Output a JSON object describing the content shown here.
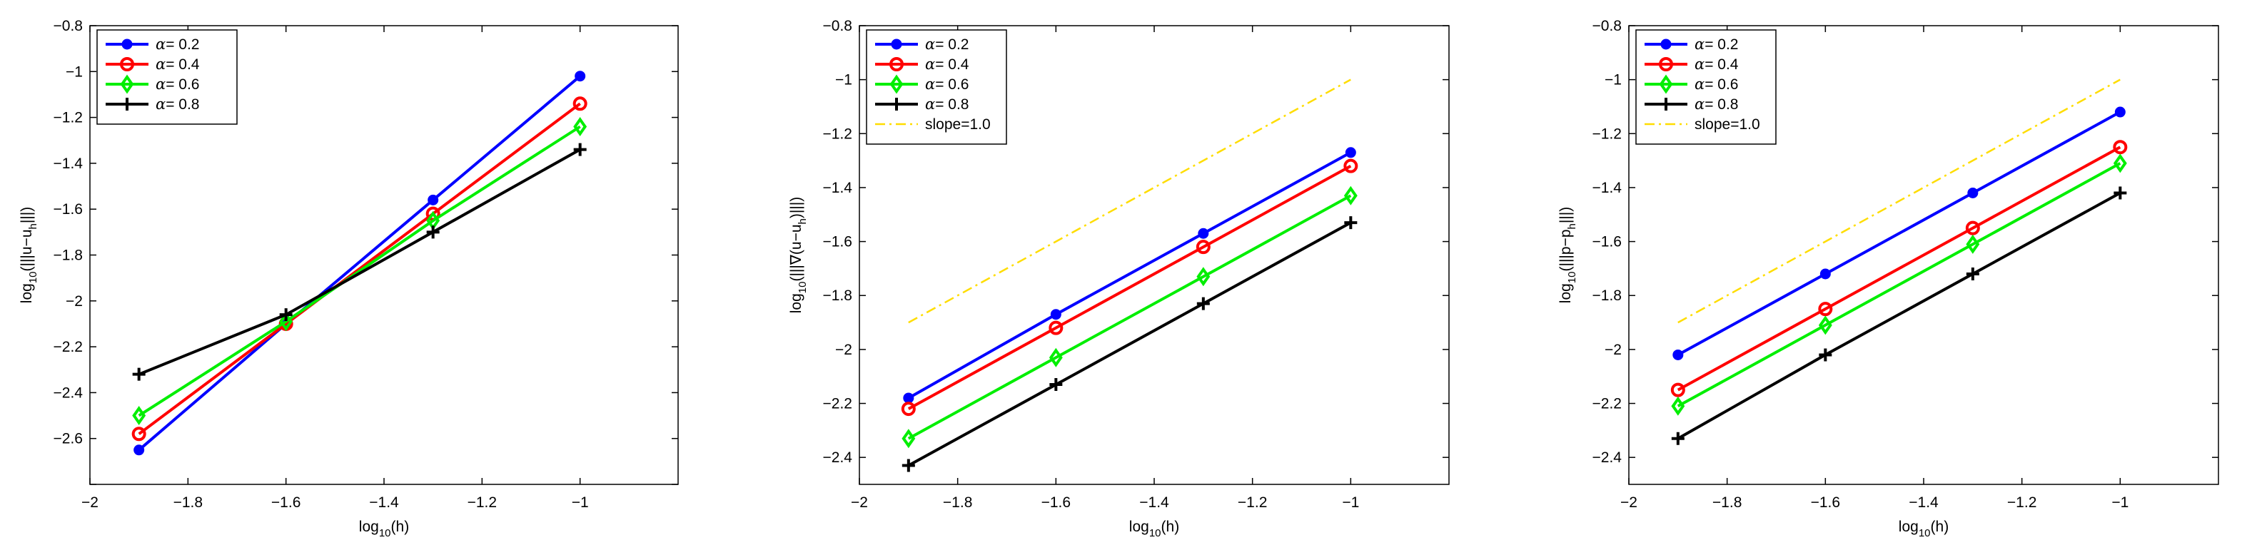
{
  "chart_data": [
    {
      "type": "line",
      "x": [
        -1.9,
        -1.6,
        -1.3,
        -1.0
      ],
      "xlabel": "log10(h)",
      "xlabel_base": "log",
      "xlabel_sub": "10",
      "xlabel_rest": "(h)",
      "ylabel": "log10(|||u−uh|||)",
      "ylabel_parts": {
        "base": "log",
        "sub": "10",
        "mid": "(|||u−u",
        "sub2": "h",
        "end": "|||)"
      },
      "xlim": [
        -2,
        -0.8
      ],
      "ylim": [
        -2.8,
        -0.8
      ],
      "xticks": [
        -2,
        -1.8,
        -1.6,
        -1.4,
        -1.2,
        -1
      ],
      "xtick_labels": [
        "−2",
        "−1.8",
        "−1.6",
        "−1.4",
        "−1.2",
        "−1"
      ],
      "yticks": [
        -2.8,
        -2.6,
        -2.4,
        -2.2,
        -2,
        -1.8,
        -1.6,
        -1.4,
        -1.2,
        -1,
        -0.8
      ],
      "ytick_labels": [
        "",
        "−2.6",
        "−2.4",
        "−2.2",
        "−2",
        "−1.8",
        "−1.6",
        "−1.4",
        "−1.2",
        "−1",
        "−0.8"
      ],
      "legend_position": "top-left",
      "series": [
        {
          "name": "α= 0.2",
          "symbol": "α",
          "label_rest": "= 0.2",
          "color": "#0000ff",
          "marker": "dot",
          "values": [
            -2.65,
            -2.1,
            -1.56,
            -1.02
          ]
        },
        {
          "name": "α= 0.4",
          "symbol": "α",
          "label_rest": "= 0.4",
          "color": "#ff0000",
          "marker": "circle",
          "values": [
            -2.58,
            -2.1,
            -1.62,
            -1.14
          ]
        },
        {
          "name": "α= 0.6",
          "symbol": "α",
          "label_rest": "= 0.6",
          "color": "#00ee00",
          "marker": "diamond",
          "values": [
            -2.5,
            -2.09,
            -1.65,
            -1.24
          ]
        },
        {
          "name": "α= 0.8",
          "symbol": "α",
          "label_rest": "= 0.8",
          "color": "#000000",
          "marker": "plus",
          "values": [
            -2.32,
            -2.06,
            -1.7,
            -1.34
          ]
        }
      ]
    },
    {
      "type": "line",
      "x": [
        -1.9,
        -1.6,
        -1.3,
        -1.0
      ],
      "xlabel": "log10(h)",
      "xlabel_base": "log",
      "xlabel_sub": "10",
      "xlabel_rest": "(h)",
      "ylabel": "log10(|||∇(u−uh)|||)",
      "ylabel_parts": {
        "base": "log",
        "sub": "10",
        "mid": "(|||∇(u−u",
        "sub2": "h",
        "end": ")|||)"
      },
      "xlim": [
        -2,
        -0.8
      ],
      "ylim": [
        -2.5,
        -0.8
      ],
      "xticks": [
        -2,
        -1.8,
        -1.6,
        -1.4,
        -1.2,
        -1
      ],
      "xtick_labels": [
        "−2",
        "−1.8",
        "−1.6",
        "−1.4",
        "−1.2",
        "−1"
      ],
      "yticks": [
        -2.4,
        -2.2,
        -2,
        -1.8,
        -1.6,
        -1.4,
        -1.2,
        -1,
        -0.8
      ],
      "ytick_labels": [
        "−2.4",
        "−2.2",
        "−2",
        "−1.8",
        "−1.6",
        "−1.4",
        "−1.2",
        "−1",
        "−0.8"
      ],
      "legend_position": "top-left",
      "series": [
        {
          "name": "α= 0.2",
          "symbol": "α",
          "label_rest": "= 0.2",
          "color": "#0000ff",
          "marker": "dot",
          "values": [
            -2.18,
            -1.87,
            -1.57,
            -1.27
          ]
        },
        {
          "name": "α= 0.4",
          "symbol": "α",
          "label_rest": "= 0.4",
          "color": "#ff0000",
          "marker": "circle",
          "values": [
            -2.22,
            -1.92,
            -1.62,
            -1.32
          ]
        },
        {
          "name": "α= 0.6",
          "symbol": "α",
          "label_rest": "= 0.6",
          "color": "#00ee00",
          "marker": "diamond",
          "values": [
            -2.33,
            -2.03,
            -1.73,
            -1.43
          ]
        },
        {
          "name": "α= 0.8",
          "symbol": "α",
          "label_rest": "= 0.8",
          "color": "#000000",
          "marker": "plus",
          "values": [
            -2.43,
            -2.13,
            -1.83,
            -1.53
          ]
        },
        {
          "name": "slope=1.0",
          "symbol": "",
          "label_rest": "slope=1.0",
          "color": "#ffdd00",
          "marker": "none",
          "dashed": true,
          "values": [
            -1.9,
            -1.6,
            -1.3,
            -1.0
          ]
        }
      ]
    },
    {
      "type": "line",
      "x": [
        -1.9,
        -1.6,
        -1.3,
        -1.0
      ],
      "xlabel": "log10(h)",
      "xlabel_base": "log",
      "xlabel_sub": "10",
      "xlabel_rest": "(h)",
      "ylabel": "log10(|||p−ph|||)",
      "ylabel_parts": {
        "base": "log",
        "sub": "10",
        "mid": "(|||p−p",
        "sub2": "h",
        "end": "|||)"
      },
      "xlim": [
        -2,
        -0.8
      ],
      "ylim": [
        -2.5,
        -0.8
      ],
      "xticks": [
        -2,
        -1.8,
        -1.6,
        -1.4,
        -1.2,
        -1
      ],
      "xtick_labels": [
        "−2",
        "−1.8",
        "−1.6",
        "−1.4",
        "−1.2",
        "−1"
      ],
      "yticks": [
        -2.4,
        -2.2,
        -2,
        -1.8,
        -1.6,
        -1.4,
        -1.2,
        -1,
        -0.8
      ],
      "ytick_labels": [
        "−2.4",
        "−2.2",
        "−2",
        "−1.8",
        "−1.6",
        "−1.4",
        "−1.2",
        "−1",
        "−0.8"
      ],
      "legend_position": "top-left",
      "series": [
        {
          "name": "α= 0.2",
          "symbol": "α",
          "label_rest": "= 0.2",
          "color": "#0000ff",
          "marker": "dot",
          "values": [
            -2.02,
            -1.72,
            -1.42,
            -1.12
          ]
        },
        {
          "name": "α= 0.4",
          "symbol": "α",
          "label_rest": "= 0.4",
          "color": "#ff0000",
          "marker": "circle",
          "values": [
            -2.15,
            -1.85,
            -1.55,
            -1.25
          ]
        },
        {
          "name": "α= 0.6",
          "symbol": "α",
          "label_rest": "= 0.6",
          "color": "#00ee00",
          "marker": "diamond",
          "values": [
            -2.21,
            -1.91,
            -1.61,
            -1.31
          ]
        },
        {
          "name": "α= 0.8",
          "symbol": "α",
          "label_rest": "= 0.8",
          "color": "#000000",
          "marker": "plus",
          "values": [
            -2.33,
            -2.02,
            -1.72,
            -1.42
          ]
        },
        {
          "name": "slope=1.0",
          "symbol": "",
          "label_rest": "slope=1.0",
          "color": "#ffdd00",
          "marker": "none",
          "dashed": true,
          "values": [
            -1.9,
            -1.6,
            -1.3,
            -1.0
          ]
        }
      ]
    }
  ]
}
